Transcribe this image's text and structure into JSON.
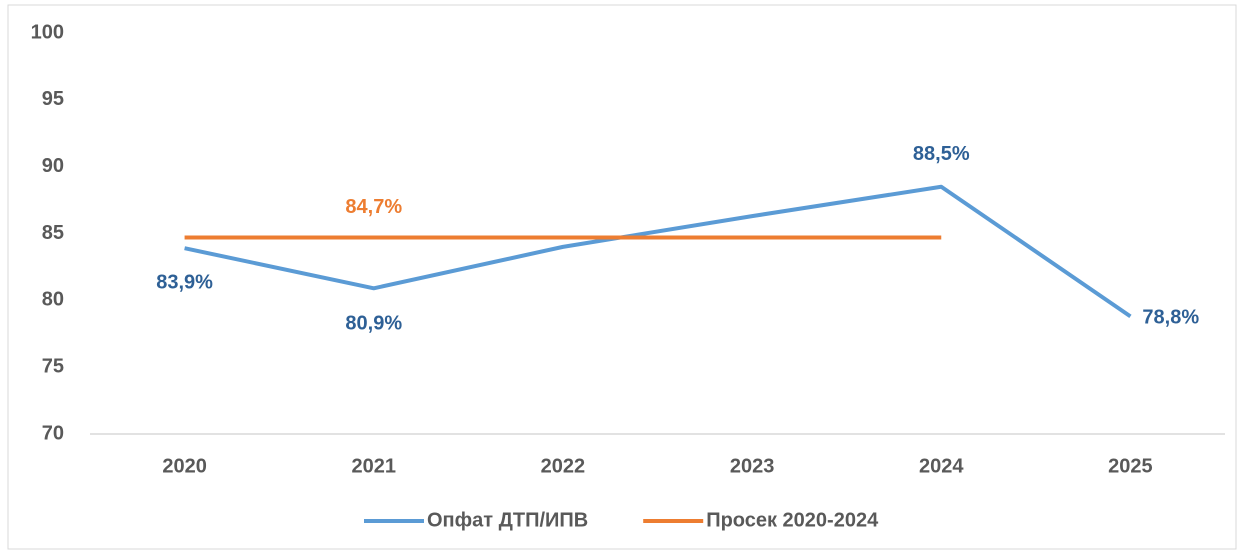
{
  "chart_data": {
    "type": "line",
    "categories": [
      "2020",
      "2021",
      "2022",
      "2023",
      "2024",
      "2025"
    ],
    "series": [
      {
        "name": "Опфат ДТП/ИПВ",
        "color": "#5b9bd5",
        "label_color": "#2e6096",
        "values": [
          83.9,
          80.9,
          84.0,
          86.3,
          88.5,
          78.8
        ],
        "value_labels": [
          "83,9%",
          "80,9%",
          null,
          null,
          "88,5%",
          "78,8%"
        ]
      },
      {
        "name": "Просек 2020-2024",
        "color": "#ed7d31",
        "label_color": "#ed7d31",
        "values": [
          84.7,
          84.7,
          84.7,
          84.7,
          84.7,
          null
        ],
        "value_labels": [
          null,
          "84,7%",
          null,
          null,
          null,
          null
        ]
      }
    ],
    "ylim": [
      70,
      100
    ],
    "yticks": [
      70,
      75,
      80,
      85,
      90,
      95,
      100
    ],
    "grid": false,
    "legend": "bottom"
  }
}
